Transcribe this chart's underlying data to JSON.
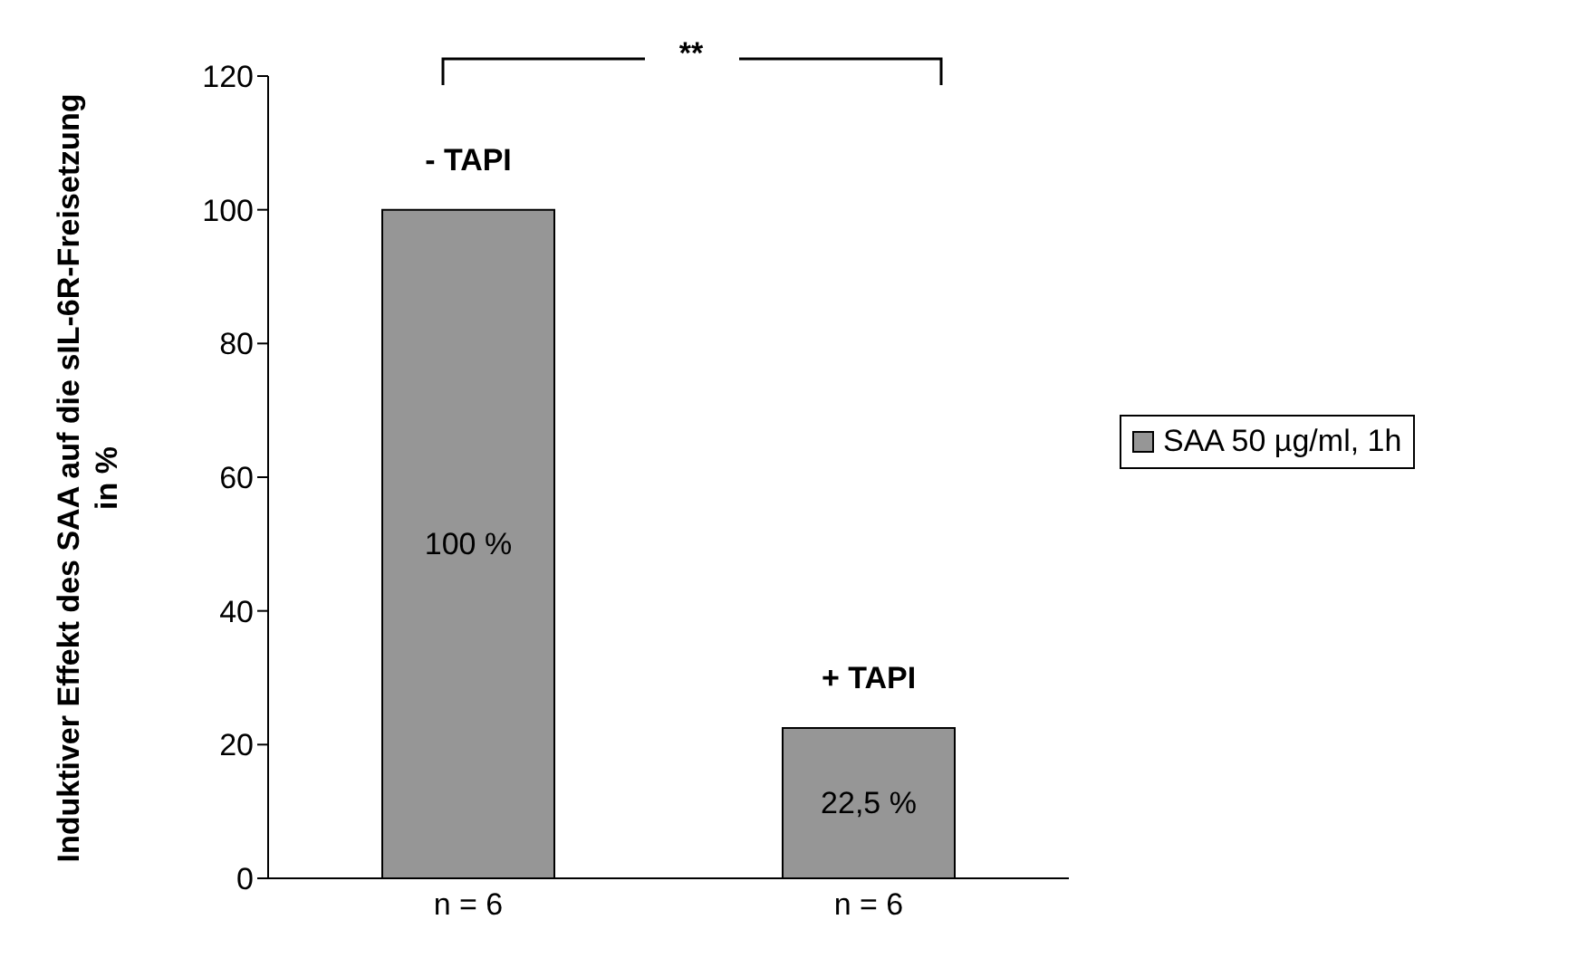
{
  "chart_data": {
    "type": "bar",
    "ylabel": "Induktiver Effekt des SAA auf die sIL-6R-Freisetzung in %",
    "categories": [
      "n = 6",
      "n = 6"
    ],
    "series": [
      {
        "name": "SAA 50 µg/ml, 1h",
        "color": "#969696",
        "values": [
          100,
          22.5
        ],
        "value_labels": [
          "100 %",
          "22,5 %"
        ]
      }
    ],
    "ylim": [
      0,
      120
    ],
    "yticks": [
      0,
      20,
      40,
      60,
      80,
      100,
      120
    ],
    "grid": false,
    "legend": "right",
    "annotations": [
      "- TAPI",
      "+ TAPI",
      "**"
    ]
  }
}
